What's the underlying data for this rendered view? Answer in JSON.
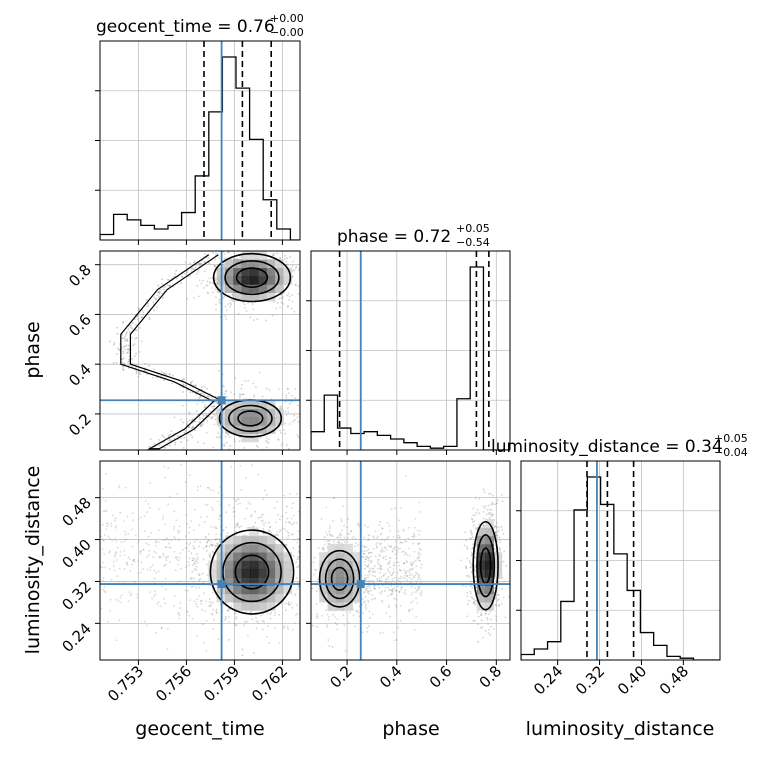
{
  "chart_data": {
    "type": "corner",
    "parameters": [
      "geocent_time",
      "phase",
      "luminosity_distance"
    ],
    "injection": {
      "geocent_time": 0.7582,
      "phase": 0.255,
      "luminosity_distance": 0.315
    },
    "colors": {
      "truth": "#4682b4",
      "hist": "#000000",
      "grid": "#c0c0c0",
      "scatter": "#808080"
    },
    "grid": true,
    "titles": {
      "geocent_time": {
        "label": "geocent_time",
        "median": "0.76",
        "plus": "+0.00",
        "minus": "−0.00"
      },
      "phase": {
        "label": "phase",
        "median": "0.72",
        "plus": "+0.05",
        "minus": "−0.54"
      },
      "luminosity_distance": {
        "label": "luminosity_distance",
        "median": "0.34",
        "plus": "+0.05",
        "minus": "−0.04"
      }
    },
    "axes": {
      "geocent_time": {
        "range": [
          0.7506,
          0.7631
        ],
        "ticks": [
          0.753,
          0.756,
          0.759,
          0.762
        ],
        "tick_labels": [
          "0.753",
          "0.756",
          "0.759",
          "0.762"
        ]
      },
      "phase": {
        "range": [
          0.055,
          0.855
        ],
        "ticks": [
          0.2,
          0.4,
          0.6,
          0.8
        ],
        "tick_labels": [
          "0.2",
          "0.4",
          "0.6",
          "0.8"
        ]
      },
      "luminosity_distance": {
        "range": [
          0.17,
          0.55
        ],
        "ticks": [
          0.24,
          0.32,
          0.4,
          0.48
        ],
        "tick_labels": [
          "0.24",
          "0.32",
          "0.40",
          "0.48"
        ]
      }
    },
    "marginals": {
      "geocent_time": {
        "quantiles": [
          0.7571,
          0.7595,
          0.7613
        ],
        "bin_edges": [
          0.7506,
          0.75145,
          0.7523,
          0.75315,
          0.754,
          0.75485,
          0.7557,
          0.75655,
          0.7574,
          0.75825,
          0.7591,
          0.75995,
          0.7608,
          0.76165,
          0.7625,
          0.7631
        ],
        "counts": [
          0.03,
          0.14,
          0.11,
          0.08,
          0.06,
          0.08,
          0.15,
          0.35,
          0.7,
          1.0,
          0.83,
          0.55,
          0.22,
          0.06,
          0.0
        ]
      },
      "phase": {
        "quantiles": [
          0.17,
          0.72,
          0.77
        ],
        "bin_edges": [
          0.055,
          0.1083,
          0.1617,
          0.215,
          0.2683,
          0.3217,
          0.375,
          0.4283,
          0.4817,
          0.535,
          0.5883,
          0.6417,
          0.695,
          0.7483,
          0.8017,
          0.855
        ],
        "counts": [
          0.1,
          0.3,
          0.12,
          0.09,
          0.1,
          0.08,
          0.06,
          0.04,
          0.02,
          0.01,
          0.02,
          0.28,
          1.0,
          0.0,
          0.0
        ]
      },
      "luminosity_distance": {
        "quantiles": [
          0.296,
          0.335,
          0.385
        ],
        "bin_edges": [
          0.17,
          0.1953,
          0.2207,
          0.246,
          0.2713,
          0.2967,
          0.322,
          0.3473,
          0.3727,
          0.398,
          0.4233,
          0.4487,
          0.474,
          0.4993,
          0.5247,
          0.55
        ],
        "counts": [
          0.03,
          0.06,
          0.1,
          0.32,
          0.82,
          1.0,
          0.85,
          0.58,
          0.38,
          0.15,
          0.08,
          0.02,
          0.01,
          0.0,
          0.0
        ]
      }
    },
    "joint": {
      "phase_vs_geocent_time": {
        "modes": [
          {
            "cx": 0.7601,
            "cy": 0.748,
            "sx": 0.0012,
            "sy": 0.048,
            "weight": 1.0
          },
          {
            "cx": 0.76,
            "cy": 0.182,
            "sx": 0.0013,
            "sy": 0.05,
            "weight": 0.55
          }
        ],
        "ridge": [
          {
            "x": 0.7577,
            "y": 0.84
          },
          {
            "x": 0.7545,
            "y": 0.7
          },
          {
            "x": 0.7522,
            "y": 0.52
          },
          {
            "x": 0.7522,
            "y": 0.4
          },
          {
            "x": 0.7555,
            "y": 0.33
          },
          {
            "x": 0.758,
            "y": 0.25
          },
          {
            "x": 0.7562,
            "y": 0.14
          },
          {
            "x": 0.754,
            "y": 0.06
          }
        ]
      },
      "luminosity_distance_vs_geocent_time": {
        "modes": [
          {
            "cx": 0.7601,
            "cy": 0.338,
            "sx": 0.0013,
            "sy": 0.04,
            "weight": 1.0
          }
        ],
        "background": [
          0.7506,
          0.7631,
          0.22,
          0.52
        ]
      },
      "luminosity_distance_vs_phase": {
        "modes": [
          {
            "cx": 0.757,
            "cy": 0.35,
            "sx": 0.025,
            "sy": 0.042,
            "weight": 1.0
          },
          {
            "cx": 0.17,
            "cy": 0.325,
            "sx": 0.06,
            "sy": 0.04,
            "weight": 0.45
          }
        ],
        "background": [
          0.1,
          0.5,
          0.24,
          0.45
        ]
      }
    }
  }
}
